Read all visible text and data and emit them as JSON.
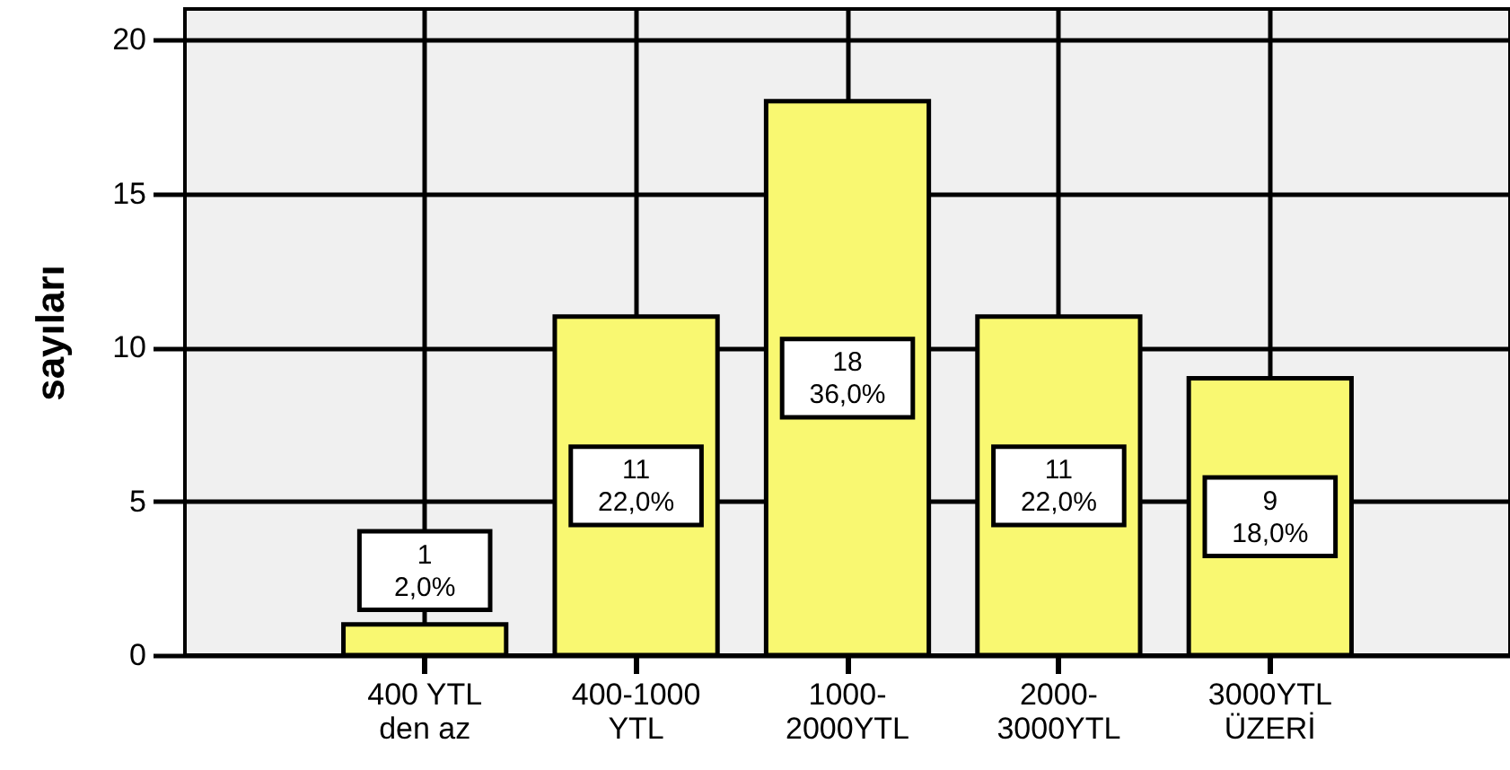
{
  "chart_data": {
    "type": "bar",
    "ylabel": "sayıları",
    "categories": [
      "400 YTL\nden az",
      "400-1000\nYTL",
      "1000-\n2000YTL",
      "2000-\n3000YTL",
      "3000YTL\nÜZERİ"
    ],
    "values": [
      1,
      11,
      18,
      11,
      9
    ],
    "value_labels": [
      "1\n2,0%",
      "11\n22,0%",
      "18\n36,0%",
      "11\n22,0%",
      "9\n18,0%"
    ],
    "color": "#f9f871",
    "ylim": [
      0,
      21
    ],
    "yticks": [
      0,
      5,
      10,
      15,
      20
    ],
    "grid": true
  }
}
